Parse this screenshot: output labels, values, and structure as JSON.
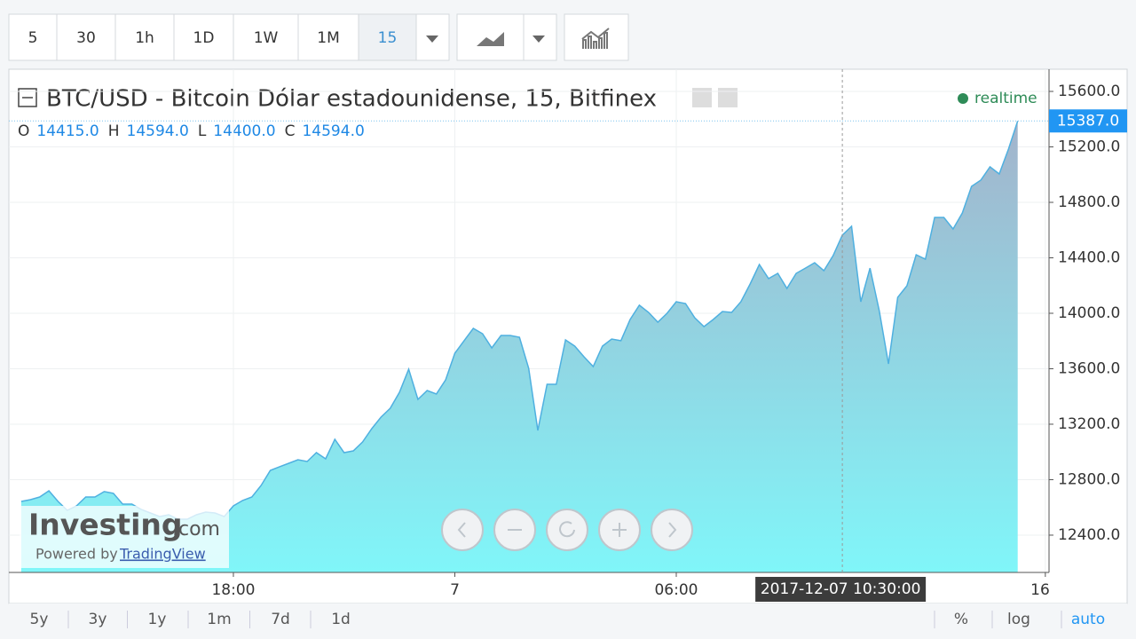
{
  "toolbar": {
    "intervals": [
      "5",
      "30",
      "1h",
      "1D",
      "1W",
      "1M",
      "15"
    ],
    "active_interval_index": 6
  },
  "chart_data": {
    "type": "area",
    "title": "BTC/USD - Bitcoin Dólar estadounidense, 15, Bitfinex",
    "status": "realtime",
    "ohlc": [
      {
        "label": "O",
        "value": "14415.0"
      },
      {
        "label": "H",
        "value": "14594.0"
      },
      {
        "label": "L",
        "value": "14400.0"
      },
      {
        "label": "C",
        "value": "14594.0"
      }
    ],
    "x": [
      "2017-12-06 12:15",
      "2017-12-06 12:30",
      "2017-12-06 12:45",
      "2017-12-06 13:00",
      "2017-12-06 13:15",
      "2017-12-06 13:30",
      "2017-12-06 13:45",
      "2017-12-06 14:00",
      "2017-12-06 14:15",
      "2017-12-06 14:30",
      "2017-12-06 14:45",
      "2017-12-06 15:00",
      "2017-12-06 15:15",
      "2017-12-06 15:30",
      "2017-12-06 15:45",
      "2017-12-06 16:00",
      "2017-12-06 16:15",
      "2017-12-06 16:30",
      "2017-12-06 16:45",
      "2017-12-06 17:00",
      "2017-12-06 17:15",
      "2017-12-06 17:30",
      "2017-12-06 17:45",
      "2017-12-06 18:00",
      "2017-12-06 18:15",
      "2017-12-06 18:30",
      "2017-12-06 18:45",
      "2017-12-06 19:00",
      "2017-12-06 19:15",
      "2017-12-06 19:30",
      "2017-12-06 19:45",
      "2017-12-06 20:00",
      "2017-12-06 20:15",
      "2017-12-06 20:30",
      "2017-12-06 20:45",
      "2017-12-06 21:00",
      "2017-12-06 21:15",
      "2017-12-06 21:30",
      "2017-12-06 21:45",
      "2017-12-06 22:00",
      "2017-12-06 22:15",
      "2017-12-06 22:30",
      "2017-12-06 22:45",
      "2017-12-06 23:00",
      "2017-12-06 23:15",
      "2017-12-06 23:30",
      "2017-12-06 23:45",
      "2017-12-07 00:00",
      "2017-12-07 00:15",
      "2017-12-07 00:30",
      "2017-12-07 00:45",
      "2017-12-07 01:00",
      "2017-12-07 01:15",
      "2017-12-07 01:30",
      "2017-12-07 01:45",
      "2017-12-07 02:00",
      "2017-12-07 02:15",
      "2017-12-07 02:30",
      "2017-12-07 02:45",
      "2017-12-07 03:00",
      "2017-12-07 03:15",
      "2017-12-07 03:30",
      "2017-12-07 03:45",
      "2017-12-07 04:00",
      "2017-12-07 04:15",
      "2017-12-07 04:30",
      "2017-12-07 04:45",
      "2017-12-07 05:00",
      "2017-12-07 05:15",
      "2017-12-07 05:30",
      "2017-12-07 05:45",
      "2017-12-07 06:00",
      "2017-12-07 06:15",
      "2017-12-07 06:30",
      "2017-12-07 06:45",
      "2017-12-07 07:00",
      "2017-12-07 07:15",
      "2017-12-07 07:30",
      "2017-12-07 07:45",
      "2017-12-07 08:00",
      "2017-12-07 08:15",
      "2017-12-07 08:30",
      "2017-12-07 08:45",
      "2017-12-07 09:00",
      "2017-12-07 09:15",
      "2017-12-07 09:30",
      "2017-12-07 09:45",
      "2017-12-07 10:00",
      "2017-12-07 10:15",
      "2017-12-07 10:30",
      "2017-12-07 10:45",
      "2017-12-07 11:00",
      "2017-12-07 11:15",
      "2017-12-07 11:30",
      "2017-12-07 11:45",
      "2017-12-07 12:00",
      "2017-12-07 12:15",
      "2017-12-07 12:30",
      "2017-12-07 12:45",
      "2017-12-07 13:00",
      "2017-12-07 13:15",
      "2017-12-07 13:30",
      "2017-12-07 13:45",
      "2017-12-07 14:00",
      "2017-12-07 14:15",
      "2017-12-07 14:30",
      "2017-12-07 14:45",
      "2017-12-07 15:00",
      "2017-12-07 15:15"
    ],
    "series": [
      {
        "name": "BTC/USD",
        "color": "#4fb0e0",
        "values": [
          12643,
          12656,
          12675,
          12720,
          12643,
          12579,
          12611,
          12675,
          12675,
          12714,
          12701,
          12624,
          12624,
          12586,
          12560,
          12534,
          12547,
          12515,
          12515,
          12547,
          12566,
          12560,
          12534,
          12611,
          12650,
          12675,
          12758,
          12867,
          12893,
          12918,
          12944,
          12931,
          12995,
          12950,
          13091,
          12995,
          13008,
          13072,
          13168,
          13251,
          13315,
          13430,
          13597,
          13379,
          13443,
          13418,
          13520,
          13712,
          13802,
          13891,
          13853,
          13750,
          13840,
          13840,
          13827,
          13603,
          13155,
          13488,
          13488,
          13808,
          13763,
          13686,
          13616,
          13763,
          13814,
          13802,
          13955,
          14058,
          14006,
          13936,
          14000,
          14083,
          14070,
          13968,
          13904,
          13955,
          14013,
          14006,
          14083,
          14211,
          14352,
          14250,
          14288,
          14179,
          14288,
          14326,
          14365,
          14307,
          14416,
          14563,
          14627,
          14083,
          14326,
          14019,
          13635,
          14115,
          14198,
          14422,
          14390,
          14691,
          14691,
          14608,
          14723,
          14915,
          14960,
          15056,
          15005,
          15184,
          15387
        ]
      }
    ],
    "area_colors": [
      "#a3b3cb",
      "#80f6f9"
    ],
    "xlim": [
      "2017-12-06 11:55",
      "2017-12-07 16:06"
    ],
    "xticks": [
      {
        "value": "2017-12-06 18:00",
        "label": "18:00"
      },
      {
        "value": "2017-12-07 00:00",
        "label": "7"
      },
      {
        "value": "2017-12-07 06:00",
        "label": "06:00"
      },
      {
        "value": "2017-12-07 16:00",
        "label": "16"
      }
    ],
    "ylim": [
      12131,
      15760
    ],
    "yticks": [
      {
        "value": 12400,
        "label": "12400.0"
      },
      {
        "value": 12800,
        "label": "12800.0"
      },
      {
        "value": 13200,
        "label": "13200.0"
      },
      {
        "value": 13600,
        "label": "13600.0"
      },
      {
        "value": 14000,
        "label": "14000.0"
      },
      {
        "value": 14400,
        "label": "14400.0"
      },
      {
        "value": 14800,
        "label": "14800.0"
      },
      {
        "value": 15200,
        "label": "15200.0"
      },
      {
        "value": 15600,
        "label": "15600.0"
      }
    ],
    "last_price": {
      "value": 15387,
      "label": "15387.0"
    },
    "crosshair_label": "2017-12-07 10:30:00",
    "grid": true
  },
  "watermark": {
    "brand": "Investing",
    "domain": ".com",
    "powered_by": "Powered by",
    "provider": "TradingView"
  },
  "footer": {
    "ranges": [
      "5y",
      "3y",
      "1y",
      "1m",
      "7d",
      "1d"
    ],
    "scales": [
      "%",
      "log",
      "auto"
    ],
    "active_scale_index": 2
  }
}
